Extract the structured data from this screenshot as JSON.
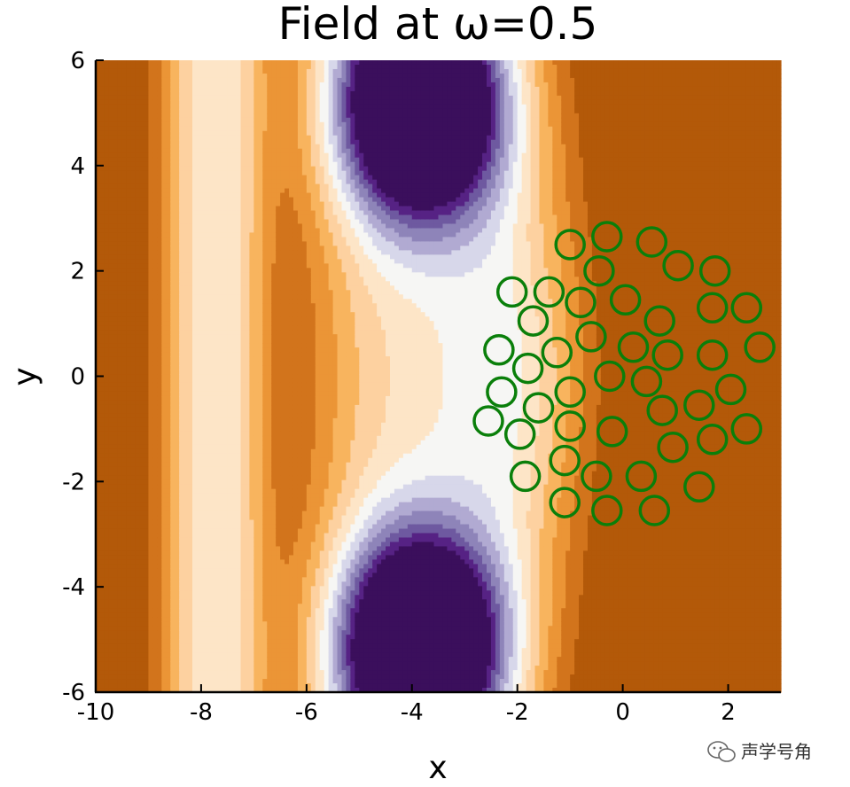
{
  "chart_data": {
    "type": "contour",
    "title": "Field at ω=0.5",
    "xlabel": "x",
    "ylabel": "y",
    "xlim": [
      -10,
      3
    ],
    "ylim": [
      -6,
      6
    ],
    "x_ticks": [
      "-10",
      "-8",
      "-6",
      "-4",
      "-2",
      "0",
      "2"
    ],
    "y_ticks": [
      "-6",
      "-4",
      "-2",
      "0",
      "2",
      "4",
      "6"
    ],
    "colormap": "PuOr (orange = high, purple = low)",
    "scatterers": [
      {
        "x": -1.0,
        "y": 2.5
      },
      {
        "x": -0.3,
        "y": 2.65
      },
      {
        "x": 0.55,
        "y": 2.55
      },
      {
        "x": -0.45,
        "y": 2.0
      },
      {
        "x": 1.05,
        "y": 2.1
      },
      {
        "x": 1.75,
        "y": 2.0
      },
      {
        "x": -2.1,
        "y": 1.6
      },
      {
        "x": -1.4,
        "y": 1.6
      },
      {
        "x": -0.8,
        "y": 1.4
      },
      {
        "x": 0.05,
        "y": 1.45
      },
      {
        "x": 1.7,
        "y": 1.3
      },
      {
        "x": 2.35,
        "y": 1.3
      },
      {
        "x": -1.7,
        "y": 1.05
      },
      {
        "x": 0.7,
        "y": 1.05
      },
      {
        "x": -0.6,
        "y": 0.75
      },
      {
        "x": -2.35,
        "y": 0.5
      },
      {
        "x": -1.25,
        "y": 0.45
      },
      {
        "x": 0.2,
        "y": 0.55
      },
      {
        "x": 0.85,
        "y": 0.4
      },
      {
        "x": 1.7,
        "y": 0.4
      },
      {
        "x": 2.6,
        "y": 0.55
      },
      {
        "x": -1.8,
        "y": 0.15
      },
      {
        "x": -0.25,
        "y": 0.0
      },
      {
        "x": 0.45,
        "y": -0.1
      },
      {
        "x": -2.3,
        "y": -0.3
      },
      {
        "x": -1.0,
        "y": -0.3
      },
      {
        "x": 2.05,
        "y": -0.25
      },
      {
        "x": -1.6,
        "y": -0.6
      },
      {
        "x": 0.75,
        "y": -0.65
      },
      {
        "x": 1.45,
        "y": -0.55
      },
      {
        "x": -2.55,
        "y": -0.85
      },
      {
        "x": -1.95,
        "y": -1.1
      },
      {
        "x": -1.0,
        "y": -0.95
      },
      {
        "x": -0.2,
        "y": -1.05
      },
      {
        "x": 1.7,
        "y": -1.2
      },
      {
        "x": 2.35,
        "y": -1.0
      },
      {
        "x": 0.95,
        "y": -1.35
      },
      {
        "x": -1.1,
        "y": -1.6
      },
      {
        "x": -1.85,
        "y": -1.9
      },
      {
        "x": -0.5,
        "y": -1.9
      },
      {
        "x": 0.35,
        "y": -1.9
      },
      {
        "x": 1.45,
        "y": -2.1
      },
      {
        "x": -1.1,
        "y": -2.4
      },
      {
        "x": -0.3,
        "y": -2.55
      },
      {
        "x": 0.6,
        "y": -2.55
      }
    ]
  },
  "watermark": {
    "text": "声学号角",
    "icon": "wechat-icon"
  },
  "colors": {
    "scatterer": "#0a7f0a",
    "levels": [
      "#3b0f5c",
      "#562284",
      "#6e59a0",
      "#8e84b9",
      "#b1aad2",
      "#d7d7ea",
      "#f6f6f4",
      "#fde5c7",
      "#fdd1a0",
      "#f8b45e",
      "#eb9536",
      "#d2741c",
      "#b35909"
    ]
  }
}
